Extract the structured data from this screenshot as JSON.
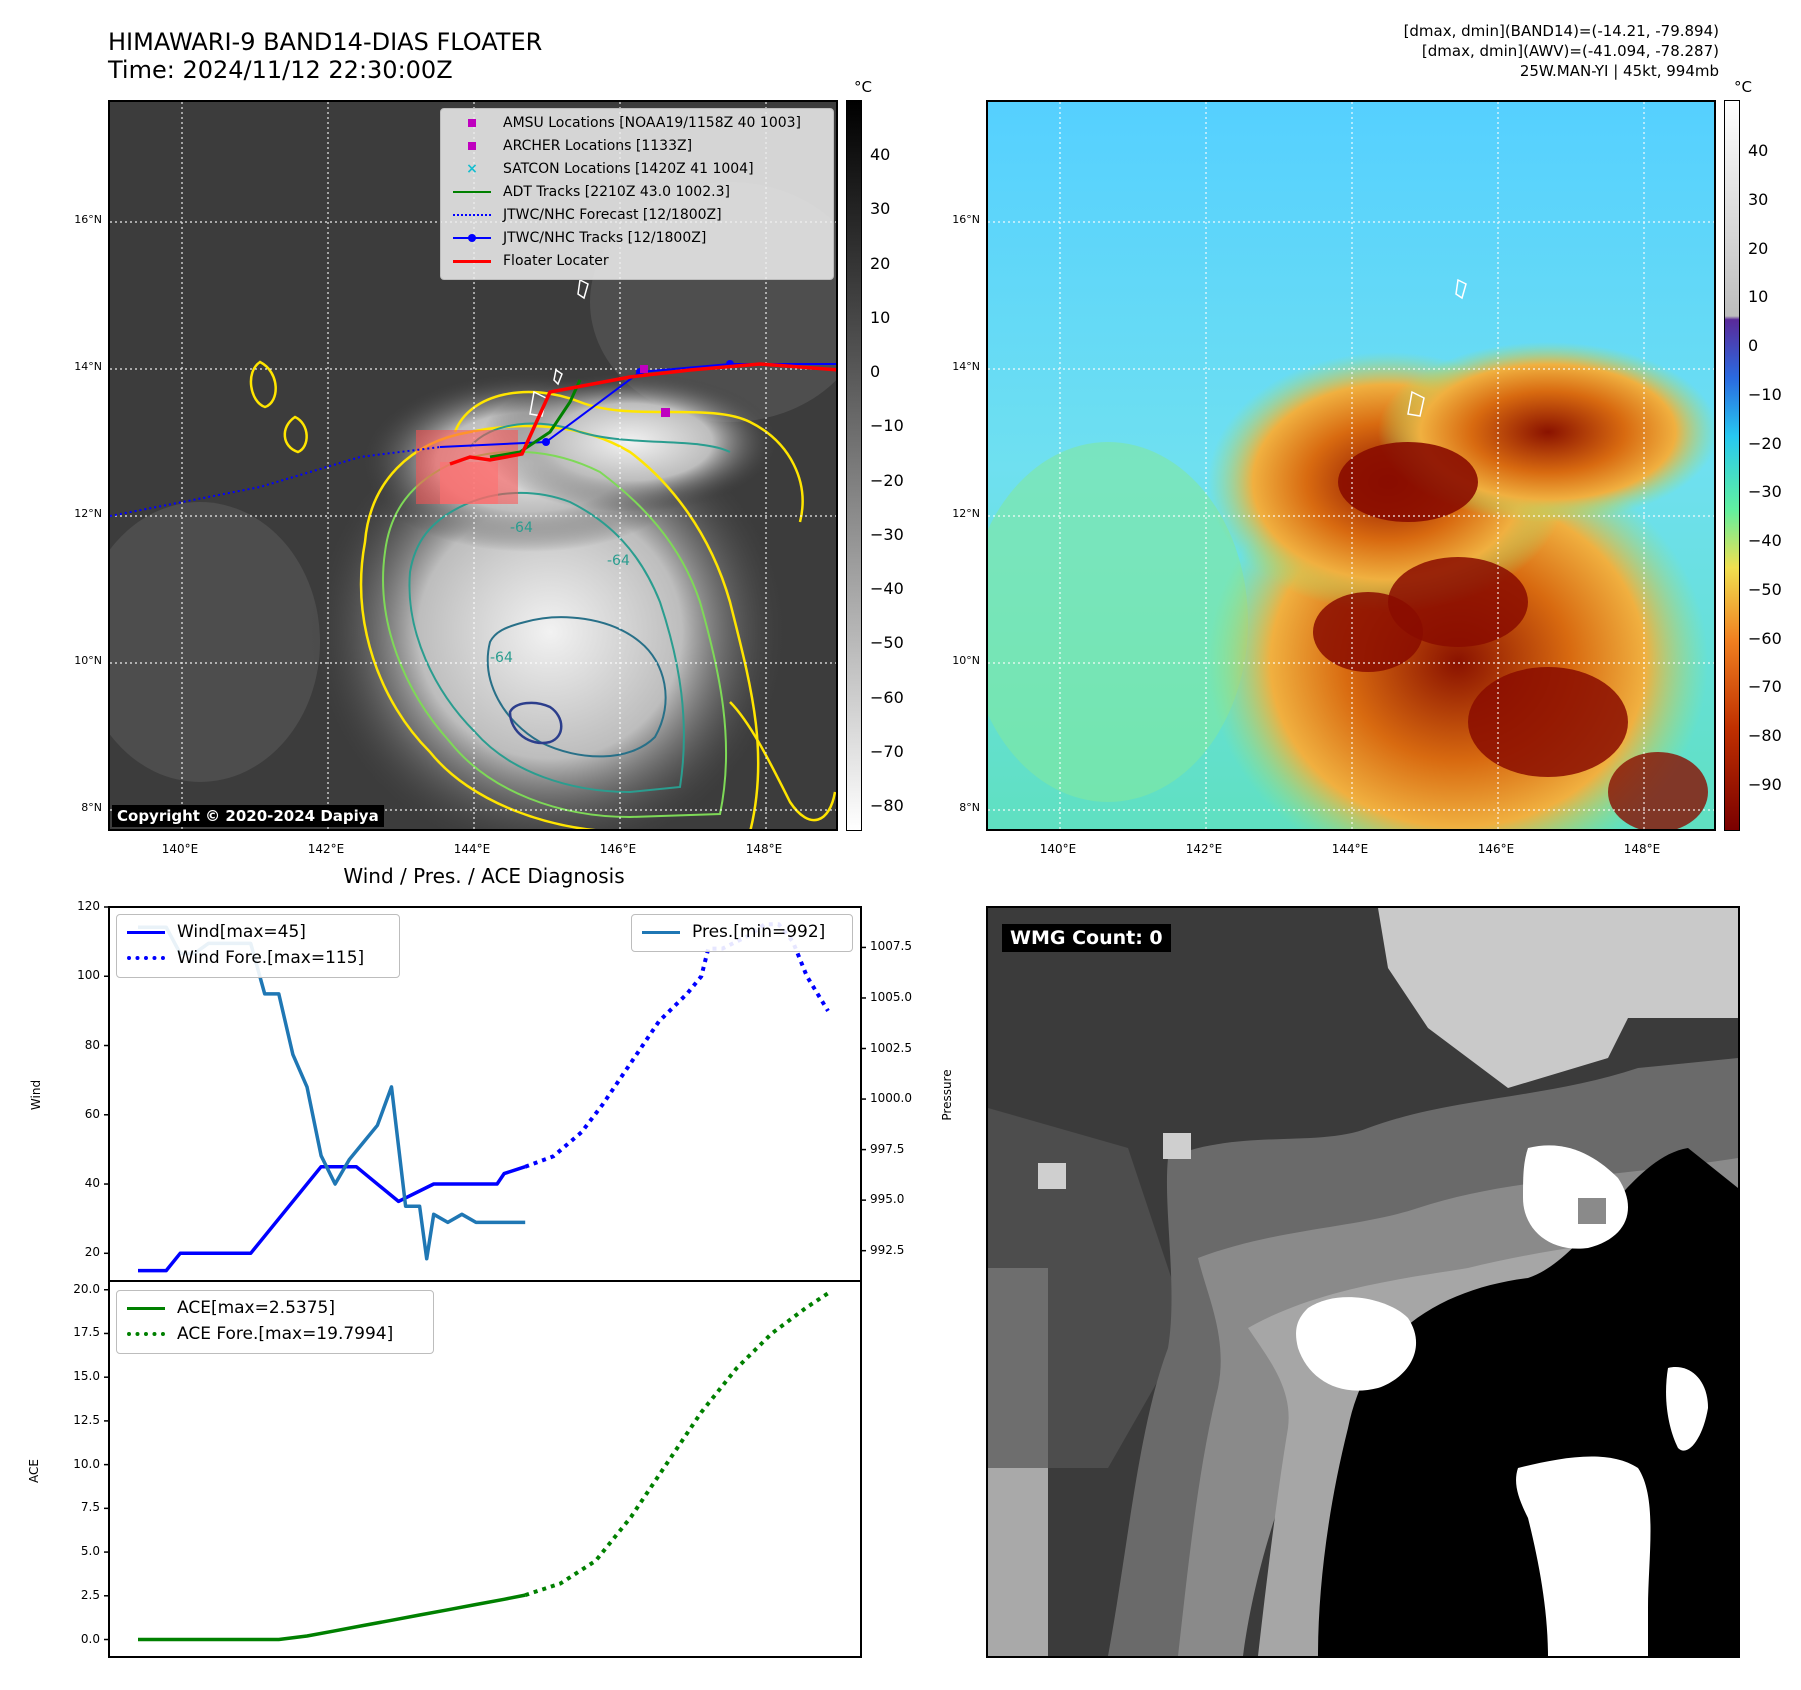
{
  "header": {
    "title_line1": "HIMAWARI-9 BAND14-DIAS FLOATER",
    "title_line2": "Time: 2024/11/12 22:30:00Z",
    "info_line1": "[dmax, dmin](BAND14)=(-14.21, -79.894)",
    "info_line2": "[dmax, dmin](AWV)=(-41.094, -78.287)",
    "info_line3": "25W.MAN-YI | 45kt, 994mb"
  },
  "maps": {
    "lat_labels": [
      "16°N",
      "14°N",
      "12°N",
      "10°N",
      "8°N"
    ],
    "lon_labels": [
      "140°E",
      "142°E",
      "144°E",
      "146°E",
      "148°E"
    ],
    "copyright": "Copyright © 2020-2024 Dapiya",
    "contour_label": "-64",
    "colorbar1": {
      "unit": "°C",
      "ticks": [
        "40",
        "30",
        "20",
        "10",
        "0",
        "−10",
        "−20",
        "−30",
        "−40",
        "−50",
        "−60",
        "−70",
        "−80"
      ]
    },
    "colorbar2": {
      "unit": "°C",
      "ticks": [
        "40",
        "30",
        "20",
        "10",
        "0",
        "−10",
        "−20",
        "−30",
        "−40",
        "−50",
        "−60",
        "−70",
        "−80",
        "−90"
      ]
    },
    "legend": [
      "AMSU Locations [NOAA19/1158Z 40 1003]",
      "ARCHER Locations [1133Z]",
      "SATCON Locations [1420Z 41 1004]",
      "ADT Tracks [2210Z 43.0 1002.3]",
      "JTWC/NHC Forecast [12/1800Z]",
      "JTWC/NHC Tracks [12/1800Z]",
      "Floater Locater"
    ],
    "colors": {
      "amsu": "#bf00bf",
      "archer": "#bf00bf",
      "satcon": "#17becf",
      "adt": "#008000",
      "forecast": "#0000ff",
      "track": "#0000ff",
      "floater": "#ff0000"
    }
  },
  "wmg": {
    "label": "WMG Count: 0"
  },
  "chart_data": [
    {
      "type": "line",
      "title": "Wind / Pres. / ACE Diagnosis",
      "ylabel": "Wind",
      "y2label": "Pressure",
      "ylim": [
        12,
        120
      ],
      "y2lim": [
        991.0,
        1009.5
      ],
      "yticks": [
        20,
        40,
        60,
        80,
        100,
        120
      ],
      "y2ticks": [
        "992.5",
        "995.0",
        "997.5",
        "1000.0",
        "1002.5",
        "1005.0",
        "1007.5"
      ],
      "series": [
        {
          "name": "Wind[max=45]",
          "color": "#0000ff",
          "style": "solid",
          "axis": "left",
          "x": [
            0,
            4,
            6,
            16,
            26,
            31,
            37,
            42,
            51,
            52,
            55
          ],
          "y": [
            15,
            15,
            20,
            20,
            45,
            45,
            35,
            40,
            40,
            43,
            45
          ]
        },
        {
          "name": "Wind Fore.[max=115]",
          "color": "#0000ff",
          "style": "dotted",
          "axis": "left",
          "x": [
            55,
            59,
            63,
            66,
            70,
            74,
            78,
            80,
            81,
            83,
            85,
            87,
            89,
            91,
            93,
            95,
            98
          ],
          "y": [
            45,
            48,
            55,
            63,
            75,
            87,
            95,
            100,
            108,
            108,
            110,
            112,
            115,
            115,
            110,
            100,
            90
          ]
        },
        {
          "name": "Pres.[min=992]",
          "color": "#1f77b4",
          "style": "solid",
          "axis": "right",
          "x": [
            0,
            4,
            6,
            8,
            10,
            16,
            18,
            20,
            22,
            24,
            26,
            28,
            30,
            34,
            36,
            38,
            39,
            40,
            41,
            42,
            44,
            46,
            48,
            49,
            50,
            52,
            55
          ],
          "y": [
            1008.5,
            1008.5,
            1007.2,
            1007.2,
            1007.7,
            1007.7,
            1005.2,
            1005.2,
            1002.2,
            1000.6,
            997.2,
            995.8,
            997.0,
            998.7,
            1000.6,
            994.7,
            994.7,
            994.7,
            992.1,
            994.3,
            993.9,
            994.3,
            993.9,
            993.9,
            993.9,
            993.9,
            993.9
          ]
        }
      ]
    },
    {
      "type": "line",
      "ylabel": "ACE",
      "ylim": [
        -1.0,
        20.5
      ],
      "yticks": [
        "0.0",
        "2.5",
        "5.0",
        "7.5",
        "10.0",
        "12.5",
        "15.0",
        "17.5",
        "20.0"
      ],
      "series": [
        {
          "name": "ACE[max=2.5375]",
          "color": "#008000",
          "style": "solid",
          "x": [
            0,
            8,
            16,
            20,
            24,
            28,
            32,
            36,
            40,
            44,
            48,
            52,
            55
          ],
          "y": [
            0,
            0,
            0,
            0,
            0.2,
            0.5,
            0.8,
            1.1,
            1.4,
            1.7,
            2.0,
            2.3,
            2.5375
          ]
        },
        {
          "name": "ACE Fore.[max=19.7994]",
          "color": "#008000",
          "style": "dotted",
          "x": [
            55,
            60,
            65,
            70,
            75,
            80,
            85,
            90,
            95,
            98
          ],
          "y": [
            2.5375,
            3.2,
            4.5,
            7.0,
            10.0,
            13.0,
            15.5,
            17.5,
            19.0,
            19.7994
          ]
        }
      ]
    }
  ]
}
